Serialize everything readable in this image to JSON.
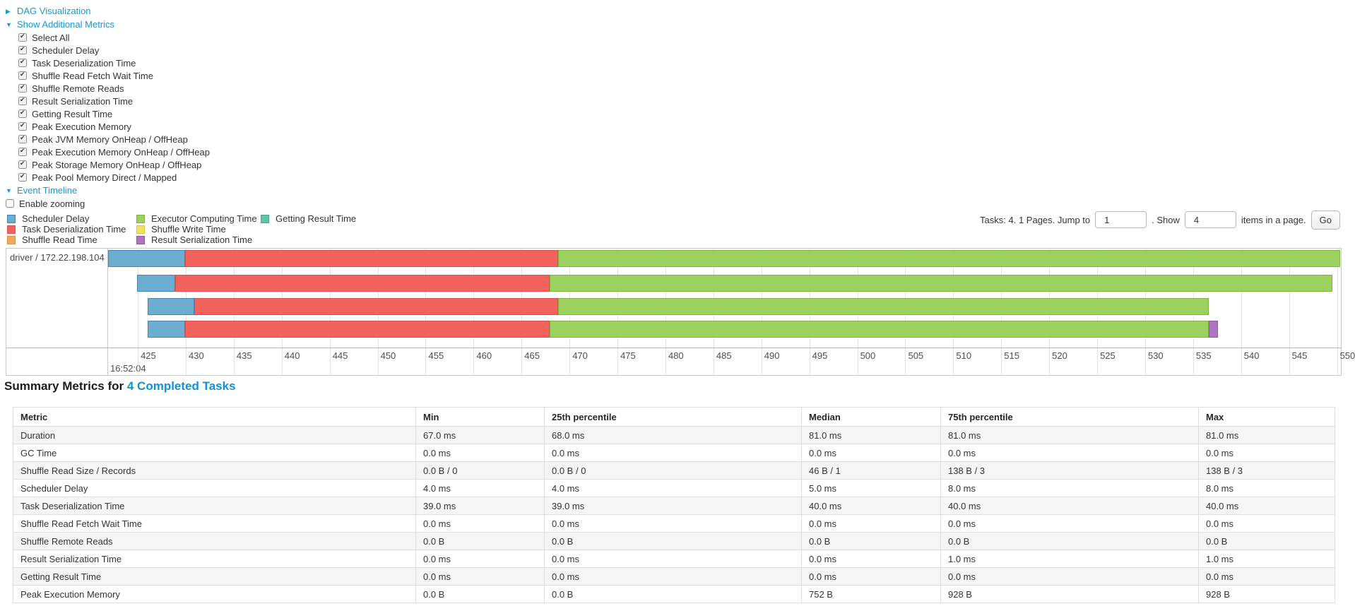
{
  "accent": {
    "link_blue": "#1699D6",
    "heading_link_blue": "#0D93D6"
  },
  "controls": {
    "dag_label": "DAG Visualization",
    "metrics_label": "Show Additional Metrics",
    "metrics_options": [
      {
        "label": "Select All",
        "checked": true
      },
      {
        "label": "Scheduler Delay",
        "checked": true
      },
      {
        "label": "Task Deserialization Time",
        "checked": true
      },
      {
        "label": "Shuffle Read Fetch Wait Time",
        "checked": true
      },
      {
        "label": "Shuffle Remote Reads",
        "checked": true
      },
      {
        "label": "Result Serialization Time",
        "checked": true
      },
      {
        "label": "Getting Result Time",
        "checked": true
      },
      {
        "label": "Peak Execution Memory",
        "checked": true
      },
      {
        "label": "Peak JVM Memory OnHeap / OffHeap",
        "checked": true
      },
      {
        "label": "Peak Execution Memory OnHeap / OffHeap",
        "checked": true
      },
      {
        "label": "Peak Storage Memory OnHeap / OffHeap",
        "checked": true
      },
      {
        "label": "Peak Pool Memory Direct / Mapped",
        "checked": true
      }
    ],
    "event_timeline_label": "Event Timeline",
    "enable_zooming": {
      "label": "Enable zooming",
      "checked": false
    }
  },
  "legend": {
    "col_offsets": [
      10,
      193,
      369
    ],
    "items": [
      {
        "label": "Scheduler Delay",
        "color_key": "scheduler_delay",
        "col": 0
      },
      {
        "label": "Task Deserialization Time",
        "color_key": "task_deserialization",
        "col": 0
      },
      {
        "label": "Shuffle Read Time",
        "color_key": "shuffle_read",
        "col": 0
      },
      {
        "label": "Executor Computing Time",
        "color_key": "executor_computing",
        "col": 1
      },
      {
        "label": "Shuffle Write Time",
        "color_key": "shuffle_write",
        "col": 1
      },
      {
        "label": "Result Serialization Time",
        "color_key": "result_serialization",
        "col": 1
      },
      {
        "label": "Getting Result Time",
        "color_key": "getting_result",
        "col": 2
      }
    ]
  },
  "pagination": {
    "summary": "Tasks: 4. 1 Pages. Jump to",
    "jump_value": "1",
    "show_label": ". Show",
    "show_value": "4",
    "items_label": "items in a page.",
    "go_label": "Go"
  },
  "chart_data": {
    "type": "timeline",
    "title": "Event Timeline",
    "row_label": "driver / 172.22.198.104",
    "x_axis": {
      "base_time_label": "16:52:04",
      "unit": "ms-within-second",
      "range": [
        421.9,
        550.4
      ],
      "ticks": [
        425,
        430,
        435,
        440,
        445,
        450,
        455,
        460,
        465,
        470,
        475,
        480,
        485,
        490,
        495,
        500,
        505,
        510,
        515,
        520,
        525,
        530,
        535,
        540,
        545,
        550
      ]
    },
    "colors": {
      "scheduler_delay": {
        "fill": "#6BAED2",
        "stroke": "#4484B4"
      },
      "task_deserialization": {
        "fill": "#F2635D",
        "stroke": "#DC4F4B"
      },
      "shuffle_read": {
        "fill": "#F9A65B",
        "stroke": "#E18F3E"
      },
      "executor_computing": {
        "fill": "#9DD15F",
        "stroke": "#7FB33F"
      },
      "shuffle_write": {
        "fill": "#EFE35E",
        "stroke": "#D5C944"
      },
      "result_serialization": {
        "fill": "#B073C2",
        "stroke": "#9356A4"
      },
      "getting_result": {
        "fill": "#60C3A2",
        "stroke": "#42A888"
      }
    },
    "tasks": [
      {
        "task_row": 1,
        "segments": [
          {
            "name": "scheduler_delay",
            "start": 421.9,
            "end": 429.9
          },
          {
            "name": "task_deserialization",
            "start": 429.9,
            "end": 468.8
          },
          {
            "name": "executor_computing",
            "start": 468.8,
            "end": 550.3
          }
        ]
      },
      {
        "task_row": 2,
        "segments": [
          {
            "name": "scheduler_delay",
            "start": 424.9,
            "end": 428.9
          },
          {
            "name": "task_deserialization",
            "start": 428.9,
            "end": 467.9
          },
          {
            "name": "executor_computing",
            "start": 467.9,
            "end": 549.5
          }
        ]
      },
      {
        "task_row": 3,
        "segments": [
          {
            "name": "scheduler_delay",
            "start": 426.0,
            "end": 430.9
          },
          {
            "name": "task_deserialization",
            "start": 430.9,
            "end": 468.8
          },
          {
            "name": "executor_computing",
            "start": 468.8,
            "end": 536.6
          }
        ]
      },
      {
        "task_row": 4,
        "segments": [
          {
            "name": "scheduler_delay",
            "start": 426.0,
            "end": 429.9
          },
          {
            "name": "task_deserialization",
            "start": 429.9,
            "end": 467.9
          },
          {
            "name": "executor_computing",
            "start": 467.9,
            "end": 536.6
          },
          {
            "name": "result_serialization",
            "start": 536.6,
            "end": 537.6
          }
        ]
      }
    ]
  },
  "summary": {
    "heading": "Summary Metrics for",
    "link_label": "4 Completed Tasks"
  },
  "table": {
    "headers": [
      "Metric",
      "Min",
      "25th percentile",
      "Median",
      "75th percentile",
      "Max"
    ],
    "rows": [
      {
        "metric": "Duration",
        "values": [
          "67.0 ms",
          "68.0 ms",
          "81.0 ms",
          "81.0 ms",
          "81.0 ms"
        ]
      },
      {
        "metric": "GC Time",
        "values": [
          "0.0 ms",
          "0.0 ms",
          "0.0 ms",
          "0.0 ms",
          "0.0 ms"
        ]
      },
      {
        "metric": "Shuffle Read Size / Records",
        "values": [
          "0.0 B / 0",
          "0.0 B / 0",
          "46 B / 1",
          "138 B / 3",
          "138 B / 3"
        ]
      },
      {
        "metric": "Scheduler Delay",
        "values": [
          "4.0 ms",
          "4.0 ms",
          "5.0 ms",
          "8.0 ms",
          "8.0 ms"
        ]
      },
      {
        "metric": "Task Deserialization Time",
        "values": [
          "39.0 ms",
          "39.0 ms",
          "40.0 ms",
          "40.0 ms",
          "40.0 ms"
        ]
      },
      {
        "metric": "Shuffle Read Fetch Wait Time",
        "values": [
          "0.0 ms",
          "0.0 ms",
          "0.0 ms",
          "0.0 ms",
          "0.0 ms"
        ]
      },
      {
        "metric": "Shuffle Remote Reads",
        "values": [
          "0.0 B",
          "0.0 B",
          "0.0 B",
          "0.0 B",
          "0.0 B"
        ]
      },
      {
        "metric": "Result Serialization Time",
        "values": [
          "0.0 ms",
          "0.0 ms",
          "0.0 ms",
          "1.0 ms",
          "1.0 ms"
        ]
      },
      {
        "metric": "Getting Result Time",
        "values": [
          "0.0 ms",
          "0.0 ms",
          "0.0 ms",
          "0.0 ms",
          "0.0 ms"
        ]
      },
      {
        "metric": "Peak Execution Memory",
        "values": [
          "0.0 B",
          "0.0 B",
          "752 B",
          "928 B",
          "928 B"
        ]
      }
    ]
  }
}
